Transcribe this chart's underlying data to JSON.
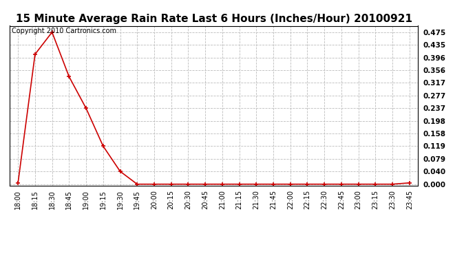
{
  "title": "15 Minute Average Rain Rate Last 6 Hours (Inches/Hour) 20100921",
  "copyright": "Copyright 2010 Cartronics.com",
  "x_labels": [
    "18:00",
    "18:15",
    "18:30",
    "18:45",
    "19:00",
    "19:15",
    "19:30",
    "19:45",
    "20:00",
    "20:15",
    "20:30",
    "20:45",
    "21:00",
    "21:15",
    "21:30",
    "21:45",
    "22:00",
    "22:15",
    "22:30",
    "22:45",
    "23:00",
    "23:15",
    "23:30",
    "23:45"
  ],
  "y_values": [
    0.004,
    0.406,
    0.475,
    0.336,
    0.237,
    0.119,
    0.04,
    0.0,
    0.0,
    0.0,
    0.0,
    0.0,
    0.0,
    0.0,
    0.0,
    0.0,
    0.0,
    0.0,
    0.0,
    0.0,
    0.0,
    0.0,
    0.0,
    0.004
  ],
  "yticks": [
    0.0,
    0.04,
    0.079,
    0.119,
    0.158,
    0.198,
    0.237,
    0.277,
    0.317,
    0.356,
    0.396,
    0.435,
    0.475
  ],
  "ylim": [
    -0.005,
    0.495
  ],
  "line_color": "#cc0000",
  "marker_color": "#cc0000",
  "grid_color": "#bbbbbb",
  "bg_color": "#ffffff",
  "title_fontsize": 11,
  "copyright_fontsize": 7,
  "tick_fontsize": 7,
  "ytick_fontsize": 7.5
}
